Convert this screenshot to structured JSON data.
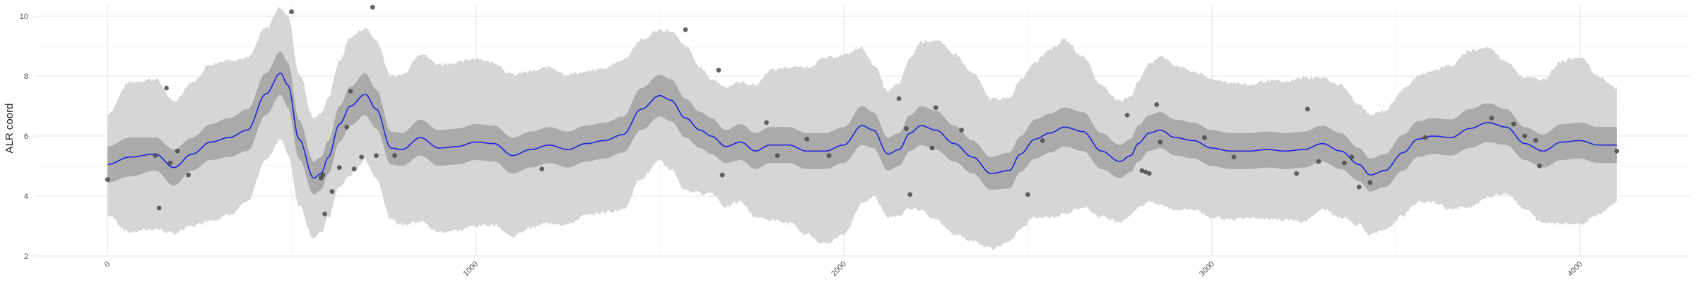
{
  "chart_data": {
    "type": "line",
    "title": "",
    "xlabel": "",
    "ylabel": "ALR coord",
    "xlim": [
      -200,
      4300
    ],
    "ylim": [
      2,
      10.4
    ],
    "x_ticks": [
      0,
      1000,
      2000,
      3000,
      4000
    ],
    "y_ticks": [
      2,
      4,
      6,
      8,
      10
    ],
    "grid": true,
    "colors": {
      "mean_line": "#1f1fe0",
      "inner_band": "#aaaaaa",
      "outer_band": "#d6d6d6",
      "points": "#4a4a4a"
    },
    "series": [
      {
        "kind": "mean",
        "x": [
          0,
          60,
          130,
          180,
          230,
          280,
          330,
          380,
          430,
          470,
          490,
          520,
          560,
          580,
          600,
          630,
          660,
          700,
          730,
          770,
          800,
          850,
          900,
          950,
          1000,
          1050,
          1100,
          1150,
          1200,
          1250,
          1300,
          1350,
          1400,
          1450,
          1500,
          1530,
          1570,
          1610,
          1640,
          1680,
          1720,
          1760,
          1800,
          1850,
          1900,
          1950,
          2000,
          2050,
          2080,
          2120,
          2150,
          2180,
          2210,
          2250,
          2300,
          2350,
          2400,
          2450,
          2480,
          2520,
          2560,
          2600,
          2650,
          2700,
          2750,
          2780,
          2800,
          2830,
          2860,
          2900,
          2950,
          3000,
          3050,
          3100,
          3150,
          3200,
          3250,
          3300,
          3350,
          3400,
          3430,
          3470,
          3520,
          3560,
          3600,
          3650,
          3700,
          3750,
          3800,
          3850,
          3900,
          3950,
          4000,
          4050,
          4100
        ],
        "y": [
          5.05,
          5.3,
          5.4,
          4.95,
          5.4,
          5.8,
          5.95,
          6.2,
          7.4,
          8.1,
          7.7,
          5.9,
          4.6,
          4.75,
          5.3,
          6.4,
          7.0,
          7.4,
          6.9,
          5.6,
          5.55,
          5.95,
          5.6,
          5.65,
          5.8,
          5.75,
          5.35,
          5.55,
          5.7,
          5.55,
          5.75,
          5.85,
          6.05,
          6.9,
          7.35,
          7.2,
          6.6,
          6.2,
          6.0,
          5.65,
          5.8,
          5.5,
          5.7,
          5.7,
          5.5,
          5.5,
          5.7,
          6.35,
          6.2,
          5.4,
          5.55,
          6.1,
          6.35,
          6.2,
          5.75,
          5.3,
          4.75,
          4.85,
          5.4,
          5.9,
          6.1,
          6.3,
          6.15,
          5.5,
          5.15,
          5.35,
          5.75,
          6.1,
          6.2,
          5.95,
          5.85,
          5.6,
          5.5,
          5.5,
          5.55,
          5.5,
          5.55,
          5.75,
          5.5,
          5.05,
          4.7,
          4.85,
          5.45,
          5.9,
          6.0,
          5.95,
          6.25,
          6.45,
          6.3,
          5.75,
          5.5,
          5.8,
          5.85,
          5.7,
          5.7
        ]
      },
      {
        "kind": "inner_band_halfwidth",
        "values": [
          0.6,
          0.65,
          0.55,
          0.6,
          0.55,
          0.6,
          0.65,
          0.7,
          0.7,
          0.72,
          0.75,
          0.65,
          0.55,
          0.55,
          0.55,
          0.6,
          0.65,
          0.7,
          0.65,
          0.55,
          0.55,
          0.6,
          0.6,
          0.6,
          0.6,
          0.6,
          0.6,
          0.6,
          0.6,
          0.6,
          0.6,
          0.6,
          0.6,
          0.7,
          0.7,
          0.7,
          0.65,
          0.6,
          0.6,
          0.55,
          0.6,
          0.6,
          0.6,
          0.6,
          0.6,
          0.6,
          0.6,
          0.65,
          0.6,
          0.55,
          0.55,
          0.6,
          0.65,
          0.65,
          0.6,
          0.55,
          0.55,
          0.6,
          0.6,
          0.65,
          0.65,
          0.65,
          0.65,
          0.6,
          0.55,
          0.55,
          0.6,
          0.6,
          0.6,
          0.6,
          0.6,
          0.6,
          0.6,
          0.6,
          0.6,
          0.6,
          0.6,
          0.6,
          0.6,
          0.55,
          0.55,
          0.55,
          0.6,
          0.6,
          0.6,
          0.6,
          0.65,
          0.65,
          0.6,
          0.55,
          0.55,
          0.6,
          0.6,
          0.6,
          0.6
        ]
      },
      {
        "kind": "outer_band_halfwidth",
        "values": [
          1.7,
          2.5,
          2.5,
          2.2,
          2.4,
          2.6,
          2.6,
          2.4,
          2.2,
          2.2,
          2.3,
          2.2,
          2.0,
          2.0,
          2.0,
          2.1,
          2.3,
          2.2,
          2.3,
          2.4,
          2.5,
          2.8,
          2.8,
          2.8,
          2.8,
          2.7,
          2.7,
          2.6,
          2.6,
          2.5,
          2.4,
          2.4,
          2.5,
          2.3,
          2.2,
          2.3,
          2.4,
          2.1,
          1.9,
          2.0,
          2.0,
          2.2,
          2.5,
          2.6,
          2.8,
          3.1,
          3.0,
          2.6,
          2.2,
          2.1,
          2.2,
          2.5,
          2.8,
          3.0,
          3.0,
          2.8,
          2.5,
          2.4,
          2.5,
          2.6,
          2.8,
          2.9,
          2.5,
          2.2,
          2.0,
          2.0,
          2.1,
          2.3,
          2.5,
          2.4,
          2.3,
          2.3,
          2.3,
          2.2,
          2.3,
          2.3,
          2.4,
          2.2,
          2.2,
          2.0,
          2.0,
          2.0,
          2.1,
          2.1,
          2.2,
          2.4,
          2.6,
          2.5,
          2.2,
          2.2,
          2.4,
          2.7,
          2.8,
          2.3,
          1.9
        ]
      },
      {
        "kind": "observed_points",
        "x": [
          0,
          130,
          140,
          160,
          170,
          190,
          220,
          500,
          580,
          585,
          590,
          610,
          630,
          650,
          660,
          670,
          690,
          720,
          730,
          780,
          1180,
          1570,
          1660,
          1670,
          1790,
          1820,
          1900,
          1960,
          2150,
          2170,
          2180,
          2240,
          2250,
          2320,
          2500,
          2540,
          2770,
          2810,
          2820,
          2830,
          2850,
          2860,
          2980,
          3060,
          3230,
          3260,
          3290,
          3360,
          3380,
          3400,
          3430,
          3580,
          3760,
          3820,
          3850,
          3880,
          3890,
          4100
        ],
        "y": [
          4.55,
          5.35,
          3.6,
          7.6,
          5.1,
          5.5,
          4.7,
          10.15,
          4.6,
          4.7,
          3.4,
          4.15,
          4.95,
          6.3,
          7.5,
          4.9,
          5.3,
          10.3,
          5.35,
          5.35,
          4.9,
          9.55,
          8.2,
          4.7,
          6.45,
          5.35,
          5.9,
          5.35,
          7.25,
          6.25,
          4.05,
          5.6,
          6.95,
          6.2,
          4.05,
          5.85,
          6.7,
          4.85,
          4.8,
          4.75,
          7.05,
          5.8,
          5.95,
          5.3,
          4.75,
          6.9,
          5.15,
          5.1,
          5.3,
          4.3,
          4.45,
          5.95,
          6.6,
          6.4,
          6.0,
          5.85,
          5.0,
          5.5
        ]
      }
    ]
  }
}
